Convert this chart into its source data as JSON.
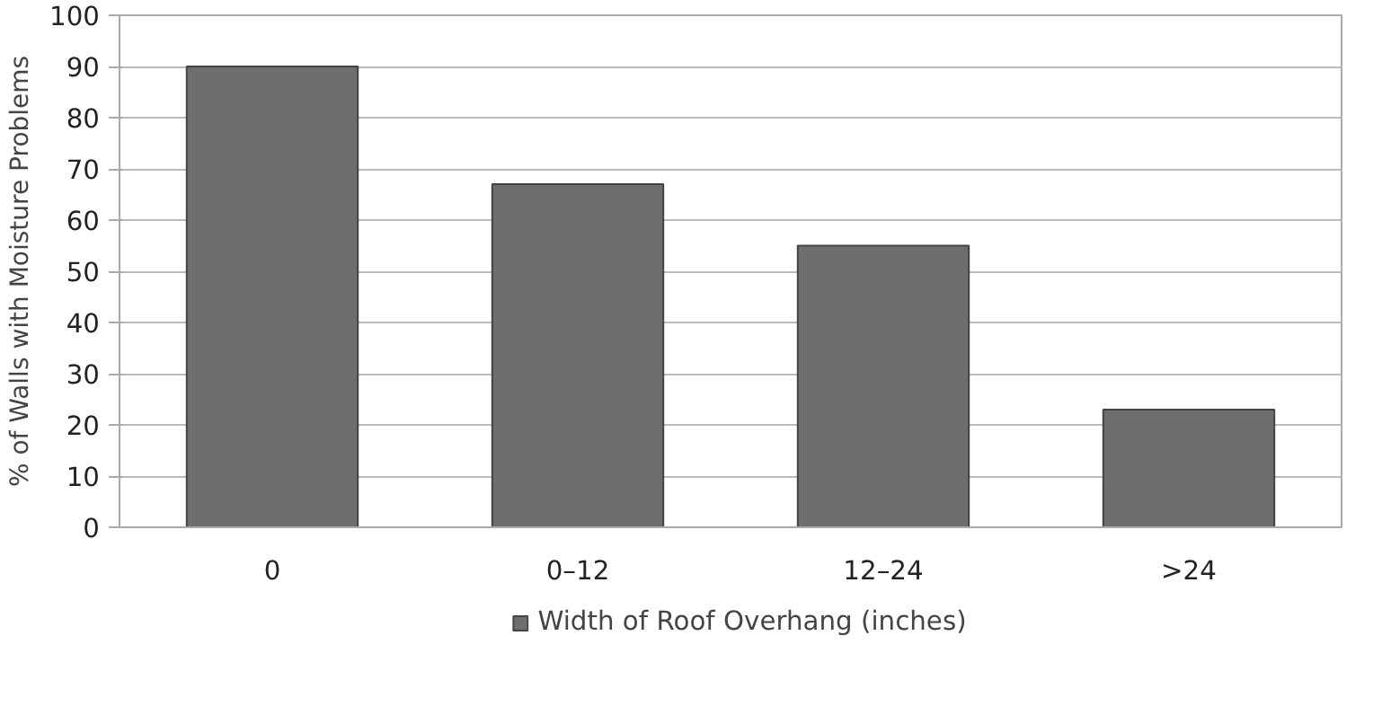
{
  "chart_data": {
    "type": "bar",
    "ylabel": "% of Walls with Moisture Problems",
    "categories": [
      "0",
      "0–12",
      "12–24",
      ">24"
    ],
    "series": [
      {
        "name": "Width of Roof Overhang (inches)",
        "color": "#6e6e6e",
        "values": [
          90,
          67,
          55,
          23
        ]
      }
    ],
    "ylim": [
      0,
      100
    ],
    "yticks": [
      0,
      10,
      20,
      30,
      40,
      50,
      60,
      70,
      80,
      90,
      100
    ],
    "grid": "y",
    "legend": "bottom"
  }
}
